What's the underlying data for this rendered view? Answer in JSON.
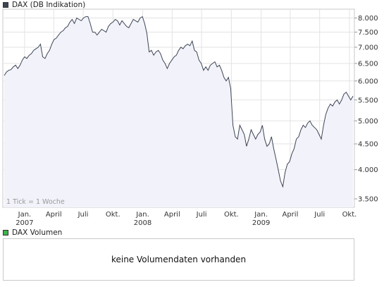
{
  "legend": {
    "price_label": "DAX (DB Indikation)",
    "volume_label": "DAX Volumen",
    "price_color": "#3d4555",
    "volume_color": "#3cb44a"
  },
  "note": "1 Tick = 1 Woche",
  "volume": {
    "message": "keine Volumendaten vorhanden"
  },
  "chart_data": {
    "type": "area",
    "title": "DAX (DB Indikation)",
    "line_color": "#3d4555",
    "fill_color": "#f2f3fa",
    "grid": true,
    "yscale": "log",
    "ylim": [
      3400,
      8250
    ],
    "yticks": [
      3500,
      4000,
      4500,
      5000,
      5500,
      6000,
      6500,
      7000,
      7500,
      8000
    ],
    "ytick_labels": [
      "3.500",
      "4.000",
      "4.500",
      "5.000",
      "5.500",
      "6.000",
      "6.500",
      "7.000",
      "7.500",
      "8.000"
    ],
    "xlim": [
      "2006-10-30",
      "2009-10-12"
    ],
    "xticks": [
      {
        "date": "2007-01-01",
        "label": "Jan.",
        "year": "2007"
      },
      {
        "date": "2007-04-01",
        "label": "April",
        "year": ""
      },
      {
        "date": "2007-07-01",
        "label": "Juli",
        "year": ""
      },
      {
        "date": "2007-10-01",
        "label": "Okt.",
        "year": ""
      },
      {
        "date": "2008-01-01",
        "label": "Jan.",
        "year": "2008"
      },
      {
        "date": "2008-04-01",
        "label": "April",
        "year": ""
      },
      {
        "date": "2008-07-01",
        "label": "Juli",
        "year": ""
      },
      {
        "date": "2008-10-01",
        "label": "Okt.",
        "year": ""
      },
      {
        "date": "2009-01-01",
        "label": "Jan.",
        "year": "2009"
      },
      {
        "date": "2009-04-01",
        "label": "April",
        "year": ""
      },
      {
        "date": "2009-07-01",
        "label": "Juli",
        "year": ""
      },
      {
        "date": "2009-10-01",
        "label": "Okt.",
        "year": ""
      }
    ],
    "series": [
      {
        "values": [
          [
            "2006-10-30",
            6150
          ],
          [
            "2006-11-06",
            6250
          ],
          [
            "2006-11-13",
            6300
          ],
          [
            "2006-11-20",
            6320
          ],
          [
            "2006-11-27",
            6400
          ],
          [
            "2006-12-04",
            6450
          ],
          [
            "2006-12-11",
            6350
          ],
          [
            "2006-12-18",
            6450
          ],
          [
            "2006-12-25",
            6600
          ],
          [
            "2007-01-01",
            6700
          ],
          [
            "2007-01-08",
            6650
          ],
          [
            "2007-01-15",
            6750
          ],
          [
            "2007-01-22",
            6800
          ],
          [
            "2007-01-29",
            6900
          ],
          [
            "2007-02-05",
            6950
          ],
          [
            "2007-02-12",
            7000
          ],
          [
            "2007-02-19",
            7100
          ],
          [
            "2007-02-26",
            6700
          ],
          [
            "2007-03-05",
            6650
          ],
          [
            "2007-03-12",
            6800
          ],
          [
            "2007-03-19",
            6900
          ],
          [
            "2007-03-26",
            7100
          ],
          [
            "2007-04-02",
            7250
          ],
          [
            "2007-04-09",
            7300
          ],
          [
            "2007-04-16",
            7400
          ],
          [
            "2007-04-23",
            7500
          ],
          [
            "2007-04-30",
            7550
          ],
          [
            "2007-05-07",
            7650
          ],
          [
            "2007-05-14",
            7700
          ],
          [
            "2007-05-21",
            7850
          ],
          [
            "2007-05-28",
            7950
          ],
          [
            "2007-06-04",
            7800
          ],
          [
            "2007-06-11",
            8000
          ],
          [
            "2007-06-18",
            7950
          ],
          [
            "2007-06-25",
            7900
          ],
          [
            "2007-07-02",
            8000
          ],
          [
            "2007-07-09",
            8050
          ],
          [
            "2007-07-16",
            8050
          ],
          [
            "2007-07-23",
            7800
          ],
          [
            "2007-07-30",
            7500
          ],
          [
            "2007-08-06",
            7500
          ],
          [
            "2007-08-13",
            7400
          ],
          [
            "2007-08-20",
            7500
          ],
          [
            "2007-08-27",
            7600
          ],
          [
            "2007-09-03",
            7550
          ],
          [
            "2007-09-10",
            7500
          ],
          [
            "2007-09-17",
            7700
          ],
          [
            "2007-09-24",
            7800
          ],
          [
            "2007-10-01",
            7850
          ],
          [
            "2007-10-08",
            7950
          ],
          [
            "2007-10-15",
            7900
          ],
          [
            "2007-10-22",
            7750
          ],
          [
            "2007-10-29",
            7900
          ],
          [
            "2007-11-05",
            7800
          ],
          [
            "2007-11-12",
            7700
          ],
          [
            "2007-11-19",
            7650
          ],
          [
            "2007-11-26",
            7800
          ],
          [
            "2007-12-03",
            7950
          ],
          [
            "2007-12-10",
            7900
          ],
          [
            "2007-12-17",
            7850
          ],
          [
            "2007-12-24",
            8000
          ],
          [
            "2007-12-31",
            8050
          ],
          [
            "2008-01-07",
            7800
          ],
          [
            "2008-01-14",
            7450
          ],
          [
            "2008-01-21",
            6850
          ],
          [
            "2008-01-28",
            6900
          ],
          [
            "2008-02-04",
            6750
          ],
          [
            "2008-02-11",
            6850
          ],
          [
            "2008-02-18",
            6900
          ],
          [
            "2008-02-25",
            6800
          ],
          [
            "2008-03-03",
            6600
          ],
          [
            "2008-03-10",
            6500
          ],
          [
            "2008-03-17",
            6350
          ],
          [
            "2008-03-24",
            6500
          ],
          [
            "2008-03-31",
            6600
          ],
          [
            "2008-04-07",
            6700
          ],
          [
            "2008-04-14",
            6750
          ],
          [
            "2008-04-21",
            6900
          ],
          [
            "2008-04-28",
            7000
          ],
          [
            "2008-05-05",
            6950
          ],
          [
            "2008-05-12",
            7050
          ],
          [
            "2008-05-19",
            7100
          ],
          [
            "2008-05-26",
            7050
          ],
          [
            "2008-06-02",
            7200
          ],
          [
            "2008-06-09",
            6900
          ],
          [
            "2008-06-16",
            6850
          ],
          [
            "2008-06-23",
            6600
          ],
          [
            "2008-06-30",
            6500
          ],
          [
            "2008-07-07",
            6300
          ],
          [
            "2008-07-14",
            6400
          ],
          [
            "2008-07-21",
            6300
          ],
          [
            "2008-07-28",
            6450
          ],
          [
            "2008-08-04",
            6500
          ],
          [
            "2008-08-11",
            6550
          ],
          [
            "2008-08-18",
            6400
          ],
          [
            "2008-08-25",
            6450
          ],
          [
            "2008-09-01",
            6300
          ],
          [
            "2008-09-08",
            6100
          ],
          [
            "2008-09-15",
            6000
          ],
          [
            "2008-09-22",
            6100
          ],
          [
            "2008-09-29",
            5800
          ],
          [
            "2008-10-06",
            4900
          ],
          [
            "2008-10-13",
            4650
          ],
          [
            "2008-10-20",
            4600
          ],
          [
            "2008-10-27",
            4900
          ],
          [
            "2008-11-03",
            4800
          ],
          [
            "2008-11-10",
            4700
          ],
          [
            "2008-11-17",
            4450
          ],
          [
            "2008-11-24",
            4600
          ],
          [
            "2008-12-01",
            4800
          ],
          [
            "2008-12-08",
            4700
          ],
          [
            "2008-12-15",
            4600
          ],
          [
            "2008-12-22",
            4700
          ],
          [
            "2008-12-29",
            4750
          ],
          [
            "2009-01-05",
            4900
          ],
          [
            "2009-01-12",
            4600
          ],
          [
            "2009-01-19",
            4450
          ],
          [
            "2009-01-26",
            4500
          ],
          [
            "2009-02-02",
            4650
          ],
          [
            "2009-02-09",
            4400
          ],
          [
            "2009-02-16",
            4200
          ],
          [
            "2009-02-23",
            4000
          ],
          [
            "2009-03-02",
            3800
          ],
          [
            "2009-03-09",
            3700
          ],
          [
            "2009-03-16",
            3950
          ],
          [
            "2009-03-23",
            4100
          ],
          [
            "2009-03-30",
            4150
          ],
          [
            "2009-04-06",
            4300
          ],
          [
            "2009-04-13",
            4400
          ],
          [
            "2009-04-20",
            4600
          ],
          [
            "2009-04-27",
            4650
          ],
          [
            "2009-05-04",
            4800
          ],
          [
            "2009-05-11",
            4900
          ],
          [
            "2009-05-18",
            4850
          ],
          [
            "2009-05-25",
            4950
          ],
          [
            "2009-06-01",
            5000
          ],
          [
            "2009-06-08",
            4900
          ],
          [
            "2009-06-15",
            4850
          ],
          [
            "2009-06-22",
            4800
          ],
          [
            "2009-06-29",
            4700
          ],
          [
            "2009-07-06",
            4600
          ],
          [
            "2009-07-13",
            4900
          ],
          [
            "2009-07-20",
            5150
          ],
          [
            "2009-07-27",
            5300
          ],
          [
            "2009-08-03",
            5400
          ],
          [
            "2009-08-10",
            5350
          ],
          [
            "2009-08-17",
            5450
          ],
          [
            "2009-08-24",
            5500
          ],
          [
            "2009-08-31",
            5400
          ],
          [
            "2009-09-07",
            5500
          ],
          [
            "2009-09-14",
            5650
          ],
          [
            "2009-09-21",
            5700
          ],
          [
            "2009-09-28",
            5600
          ],
          [
            "2009-10-05",
            5500
          ],
          [
            "2009-10-12",
            5600
          ]
        ]
      }
    ]
  }
}
